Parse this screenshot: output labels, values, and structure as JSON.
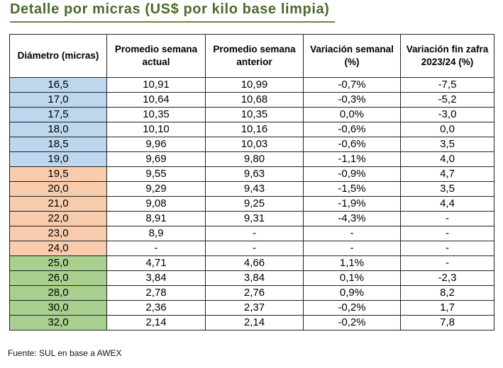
{
  "title": "Detalle por micras (US$ por kilo base limpia)",
  "table": {
    "headers": [
      "Diámetro (micras)",
      "Promedio semana actual",
      "Promedio semana anterior",
      "Variación semanal (%)",
      "Variación fin zafra 2023/24 (%)"
    ],
    "rows": [
      {
        "group": "g1",
        "cells": [
          "16,5",
          "10,91",
          "10,99",
          "-0,7%",
          "-7,5"
        ]
      },
      {
        "group": "g1",
        "cells": [
          "17,0",
          "10,64",
          "10,68",
          "-0,3%",
          "-5,2"
        ]
      },
      {
        "group": "g1",
        "cells": [
          "17,5",
          "10,35",
          "10,35",
          "0,0%",
          "-3,0"
        ]
      },
      {
        "group": "g1",
        "cells": [
          "18,0",
          "10,10",
          "10,16",
          "-0,6%",
          "0,0"
        ]
      },
      {
        "group": "g1",
        "cells": [
          "18,5",
          "9,96",
          "10,03",
          "-0,6%",
          "3,5"
        ]
      },
      {
        "group": "g1",
        "cells": [
          "19,0",
          "9,69",
          "9,80",
          "-1,1%",
          "4,0"
        ]
      },
      {
        "group": "g2",
        "cells": [
          "19,5",
          "9,55",
          "9,63",
          "-0,9%",
          "4,7"
        ]
      },
      {
        "group": "g2",
        "cells": [
          "20,0",
          "9,29",
          "9,43",
          "-1,5%",
          "3,5"
        ]
      },
      {
        "group": "g2",
        "cells": [
          "21,0",
          "9,08",
          "9,25",
          "-1,9%",
          "4,4"
        ]
      },
      {
        "group": "g2",
        "cells": [
          "22,0",
          "8,91",
          "9,31",
          "-4,3%",
          "-"
        ]
      },
      {
        "group": "g2",
        "cells": [
          "23,0",
          "8,9",
          "-",
          "-",
          "-"
        ]
      },
      {
        "group": "g2",
        "cells": [
          "24,0",
          "-",
          "-",
          "-",
          "-"
        ]
      },
      {
        "group": "g3",
        "cells": [
          "25,0",
          "4,71",
          "4,66",
          "1,1%",
          "-"
        ]
      },
      {
        "group": "g3",
        "cells": [
          "26,0",
          "3,84",
          "3,84",
          "0,1%",
          "-2,3"
        ]
      },
      {
        "group": "g3",
        "cells": [
          "28,0",
          "2,78",
          "2,76",
          "0,9%",
          "8,2"
        ]
      },
      {
        "group": "g3",
        "cells": [
          "30,0",
          "2,36",
          "2,37",
          "-0,2%",
          "1,7"
        ]
      },
      {
        "group": "g3",
        "cells": [
          "32,0",
          "2,14",
          "2,14",
          "-0,2%",
          "7,8"
        ]
      }
    ]
  },
  "source": "Fuente: SUL en base a AWEX",
  "colors": {
    "title": "#4a6a2a",
    "group_g1": "#bdd7ee",
    "group_g2": "#f8cbad",
    "group_g3": "#a9d08e"
  }
}
